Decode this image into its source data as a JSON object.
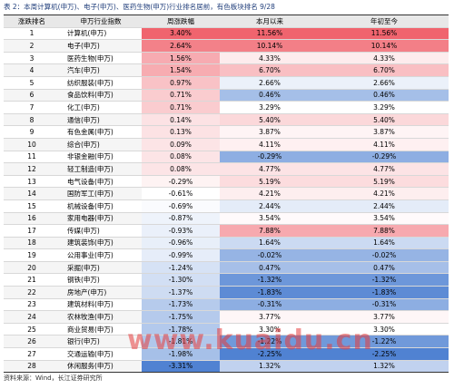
{
  "title": "表 2：本周计算机(申万)、电子(申万)、医药生物(申万)行业排名居前，有色板块排名 9/28",
  "table": {
    "header": [
      "涨跌排名",
      "申万行业指数",
      "周涨跌幅",
      "本月以来",
      "年初至今"
    ],
    "rows": [
      [
        "1",
        "计算机(申万)",
        "3.40%",
        "11.56%",
        "11.56%"
      ],
      [
        "2",
        "电子(申万)",
        "2.64%",
        "10.14%",
        "10.14%"
      ],
      [
        "3",
        "医药生物(申万)",
        "1.56%",
        "4.33%",
        "4.33%"
      ],
      [
        "4",
        "汽车(申万)",
        "1.54%",
        "6.70%",
        "6.70%"
      ],
      [
        "5",
        "纺织服装(申万)",
        "0.97%",
        "2.66%",
        "2.66%"
      ],
      [
        "6",
        "食品饮料(申万)",
        "0.71%",
        "0.46%",
        "0.46%"
      ],
      [
        "7",
        "化工(申万)",
        "0.71%",
        "3.29%",
        "3.29%"
      ],
      [
        "8",
        "通信(申万)",
        "0.14%",
        "5.40%",
        "5.40%"
      ],
      [
        "9",
        "有色金属(申万)",
        "0.13%",
        "3.87%",
        "3.87%"
      ],
      [
        "10",
        "综合(申万)",
        "0.09%",
        "4.11%",
        "4.11%"
      ],
      [
        "11",
        "非银金融(申万)",
        "0.08%",
        "-0.29%",
        "-0.29%"
      ],
      [
        "12",
        "轻工制造(申万)",
        "0.08%",
        "4.77%",
        "4.77%"
      ],
      [
        "13",
        "电气设备(申万)",
        "-0.29%",
        "5.19%",
        "5.19%"
      ],
      [
        "14",
        "国防军工(申万)",
        "-0.61%",
        "4.21%",
        "4.21%"
      ],
      [
        "15",
        "机械设备(申万)",
        "-0.69%",
        "2.44%",
        "2.44%"
      ],
      [
        "16",
        "家用电器(申万)",
        "-0.87%",
        "3.54%",
        "3.54%"
      ],
      [
        "17",
        "传媒(申万)",
        "-0.93%",
        "7.88%",
        "7.88%"
      ],
      [
        "18",
        "建筑装饰(申万)",
        "-0.96%",
        "1.64%",
        "1.64%"
      ],
      [
        "19",
        "公用事业(申万)",
        "-0.99%",
        "-0.02%",
        "-0.02%"
      ],
      [
        "20",
        "采掘(申万)",
        "-1.24%",
        "0.47%",
        "0.47%"
      ],
      [
        "21",
        "钢铁(申万)",
        "-1.30%",
        "-1.32%",
        "-1.32%"
      ],
      [
        "22",
        "房地产(申万)",
        "-1.37%",
        "-1.83%",
        "-1.83%"
      ],
      [
        "23",
        "建筑材料(申万)",
        "-1.73%",
        "-0.31%",
        "-0.31%"
      ],
      [
        "24",
        "农林牧渔(申万)",
        "-1.75%",
        "3.77%",
        "3.77%"
      ],
      [
        "25",
        "商业贸易(申万)",
        "-1.78%",
        "3.30%",
        "3.30%"
      ],
      [
        "26",
        "银行(申万)",
        "-1.81%",
        "-1.22%",
        "-1.22%"
      ],
      [
        "27",
        "交通运输(申万)",
        "-1.98%",
        "-2.25%",
        "-2.25%"
      ],
      [
        "28",
        "休闲服务(申万)",
        "-3.31%",
        "1.32%",
        "1.32%"
      ]
    ]
  },
  "source": "资料来源：Wind，长江证券研究所",
  "watermark": "www.kuaidu.cn"
}
